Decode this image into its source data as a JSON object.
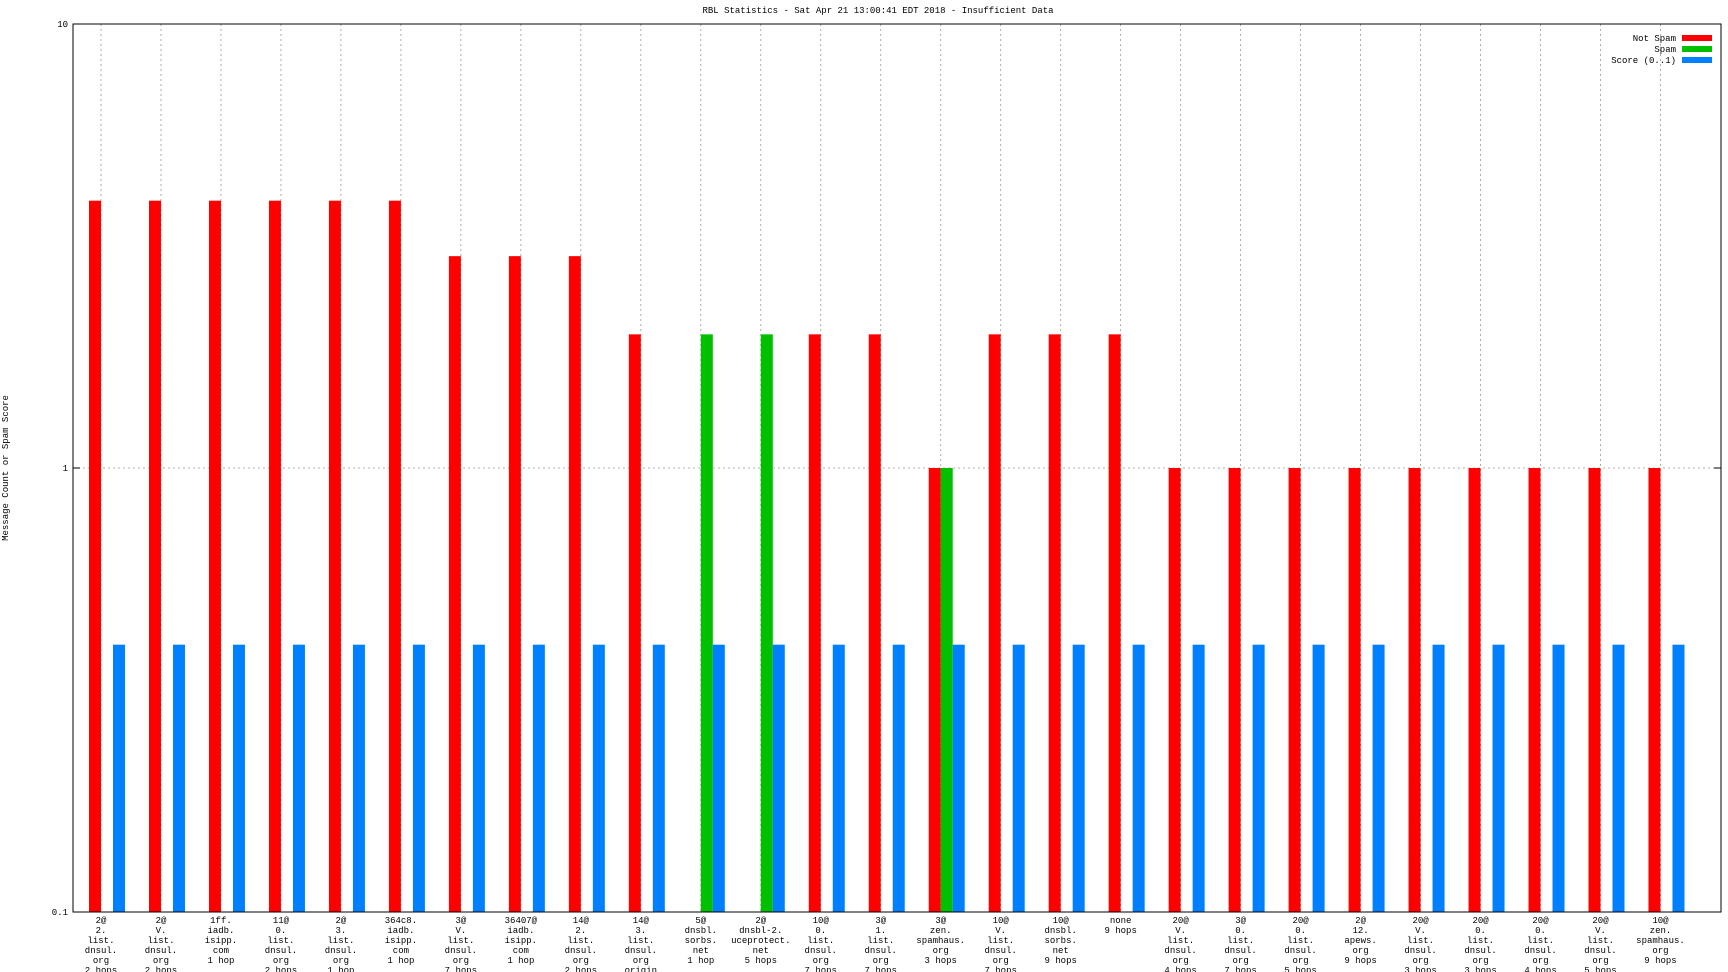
{
  "chart_data": {
    "type": "bar",
    "title": "RBL Statistics - Sat Apr 21 13:00:41 EDT 2018 - Insufficient Data",
    "y_label": "Message Count or Spam Score",
    "log_scale": true,
    "ylim": [
      0.1,
      10
    ],
    "yticks": [
      0.1,
      1,
      10
    ],
    "grid": true,
    "legend": "top-right",
    "categories": [
      [
        "2@",
        "2.",
        "list.",
        "dnsul.",
        "org",
        "2 hops"
      ],
      [
        "2@",
        "V.",
        "list.",
        "dnsul.",
        "org",
        "2 hops"
      ],
      [
        "1ff.",
        "iadb.",
        "isipp.",
        "com",
        "1 hop"
      ],
      [
        "11@",
        "0.",
        "list.",
        "dnsul.",
        "org",
        "2 hops"
      ],
      [
        "2@",
        "3.",
        "list.",
        "dnsul.",
        "org",
        "1 hop"
      ],
      [
        "364c8.",
        "iadb.",
        "isipp.",
        "com",
        "1 hop"
      ],
      [
        "3@",
        "V.",
        "list.",
        "dnsul.",
        "org",
        "7 hops"
      ],
      [
        "36407@",
        "iadb.",
        "isipp.",
        "com",
        "1 hop"
      ],
      [
        "14@",
        "2.",
        "list.",
        "dnsul.",
        "org",
        "2 hops"
      ],
      [
        "14@",
        "3.",
        "list.",
        "dnsul.",
        "org",
        "origin"
      ],
      [
        "5@",
        "dnsbl.",
        "sorbs.",
        "net",
        "1 hop"
      ],
      [
        "2@",
        "dnsbl-2.",
        "uceprotect.",
        "net",
        "5 hops"
      ],
      [
        "10@",
        "0.",
        "list.",
        "dnsul.",
        "org",
        "7 hops"
      ],
      [
        "3@",
        "1.",
        "list.",
        "dnsul.",
        "org",
        "7 hops"
      ],
      [
        "3@",
        "zen.",
        "spamhaus.",
        "org",
        "3 hops"
      ],
      [
        "10@",
        "V.",
        "list.",
        "dnsul.",
        "org",
        "7 hops"
      ],
      [
        "10@",
        "dnsbl.",
        "sorbs.",
        "net",
        "9 hops"
      ],
      [
        "none",
        "9 hops"
      ],
      [
        "20@",
        "V.",
        "list.",
        "dnsul.",
        "org",
        "4 hops"
      ],
      [
        "3@",
        "0.",
        "list.",
        "dnsul.",
        "org",
        "7 hops"
      ],
      [
        "20@",
        "0.",
        "list.",
        "dnsul.",
        "org",
        "5 hops"
      ],
      [
        "2@",
        "12.",
        "apews.",
        "org",
        "9 hops"
      ],
      [
        "20@",
        "V.",
        "list.",
        "dnsul.",
        "org",
        "3 hops"
      ],
      [
        "20@",
        "0.",
        "list.",
        "dnsul.",
        "org",
        "3 hops"
      ],
      [
        "20@",
        "0.",
        "list.",
        "dnsul.",
        "org",
        "4 hops"
      ],
      [
        "20@",
        "V.",
        "list.",
        "dnsul.",
        "org",
        "5 hops"
      ],
      [
        "10@",
        "zen.",
        "spamhaus.",
        "org",
        "9 hops"
      ]
    ],
    "series": [
      {
        "name": "Not Spam",
        "color": "#ff0000",
        "values": [
          4,
          4,
          4,
          4,
          4,
          4,
          3,
          3,
          3,
          2,
          null,
          null,
          2,
          2,
          1,
          2,
          2,
          2,
          1,
          1,
          1,
          1,
          1,
          1,
          1,
          1,
          1
        ]
      },
      {
        "name": "Spam",
        "color": "#00c000",
        "values": [
          null,
          null,
          null,
          null,
          null,
          null,
          null,
          null,
          null,
          null,
          2,
          2,
          null,
          null,
          1,
          null,
          null,
          null,
          null,
          null,
          null,
          null,
          null,
          null,
          null,
          null,
          null
        ]
      },
      {
        "name": "Score (0..1)",
        "color": "#0080ff",
        "values": [
          0.4,
          0.4,
          0.4,
          0.4,
          0.4,
          0.4,
          0.4,
          0.4,
          0.4,
          0.4,
          0.4,
          0.4,
          0.4,
          0.4,
          0.4,
          0.4,
          0.4,
          0.4,
          0.4,
          0.4,
          0.4,
          0.4,
          0.4,
          0.4,
          0.4,
          0.4,
          0.4
        ]
      }
    ]
  }
}
